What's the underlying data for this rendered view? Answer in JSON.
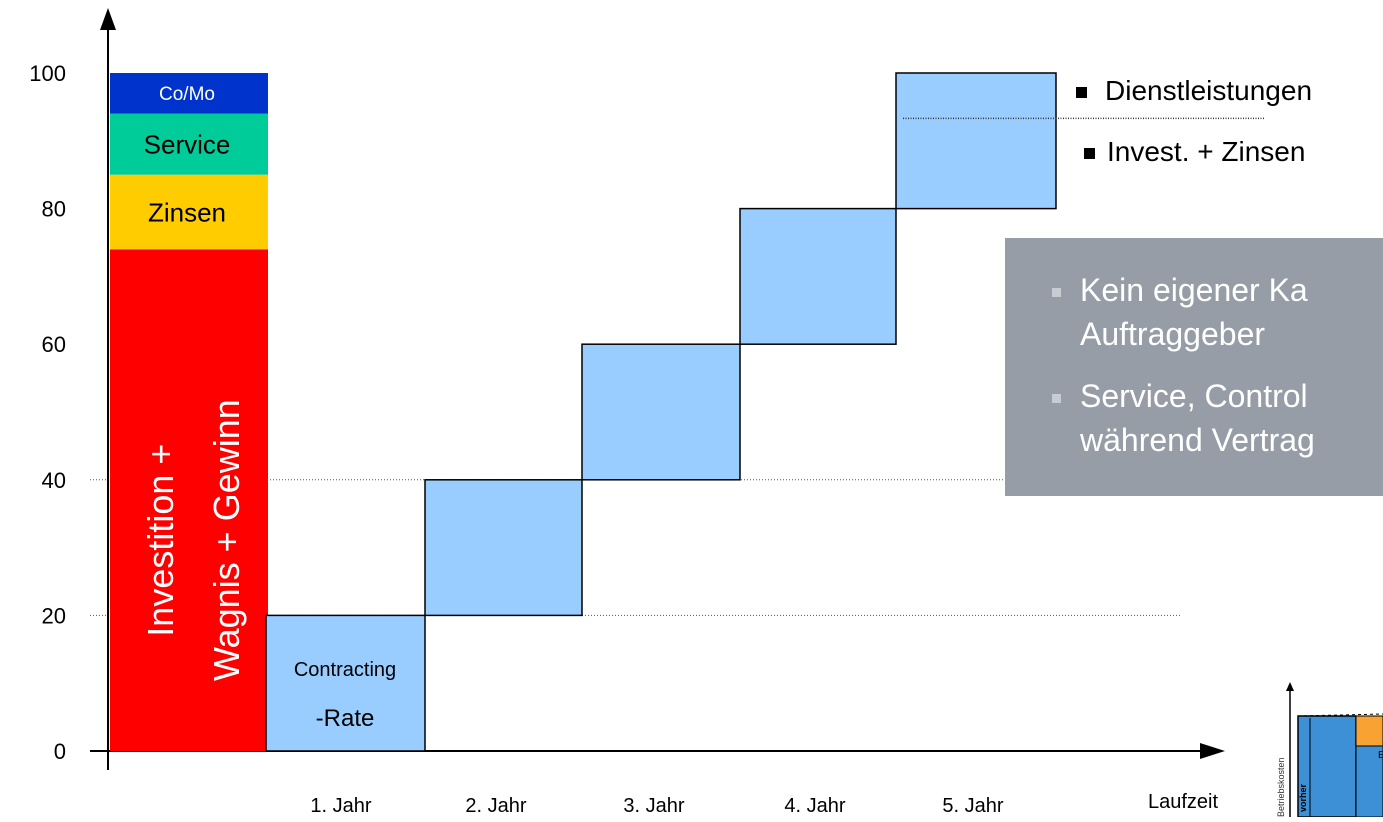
{
  "chart_data": {
    "type": "bar",
    "ylim": [
      0,
      100
    ],
    "y_ticks": [
      "0",
      "20",
      "40",
      "60",
      "80",
      "100"
    ],
    "x_labels": [
      "1. Jahr",
      "2. Jahr",
      "3. Jahr",
      "4. Jahr",
      "5. Jahr"
    ],
    "x_axis_label": "Laufzeit",
    "stacked_bar": {
      "segments": [
        {
          "label": "Investition +\nWagnis + Gewinn",
          "line1": "Investition +",
          "line2": "Wagnis + Gewinn",
          "from": 0,
          "to": 74,
          "color": "#ff0000"
        },
        {
          "label": "Zinsen",
          "from": 74,
          "to": 85,
          "color": "#ffcc00"
        },
        {
          "label": "Service",
          "from": 85,
          "to": 94,
          "color": "#00cc99"
        },
        {
          "label": "Co/Mo",
          "from": 94,
          "to": 100,
          "color": "#0033cc"
        }
      ]
    },
    "steps": [
      {
        "category": "1. Jahr",
        "from": 0,
        "to": 20,
        "line1": "Contracting",
        "line2": "-Rate"
      },
      {
        "category": "2. Jahr",
        "from": 20,
        "to": 40
      },
      {
        "category": "3. Jahr",
        "from": 40,
        "to": 60
      },
      {
        "category": "4. Jahr",
        "from": 60,
        "to": 80
      },
      {
        "category": "5. Jahr",
        "from": 80,
        "to": 100
      }
    ],
    "step_color": "#99ccff",
    "reference_lines": [
      20,
      40
    ],
    "split_line_value": 93.3,
    "legend": [
      "Dienstleistungen",
      "Invest. + Zinsen"
    ],
    "grid": false
  },
  "overlay": {
    "bullets": [
      {
        "line1": "Kein eigener Ka",
        "line2": "Auftraggeber"
      },
      {
        "line1": "Service, Control",
        "line2": "während Vertrag"
      }
    ]
  },
  "thumbnail": {
    "y_label": "Betriebskosten",
    "bar_label": "vorher",
    "text": "E"
  }
}
